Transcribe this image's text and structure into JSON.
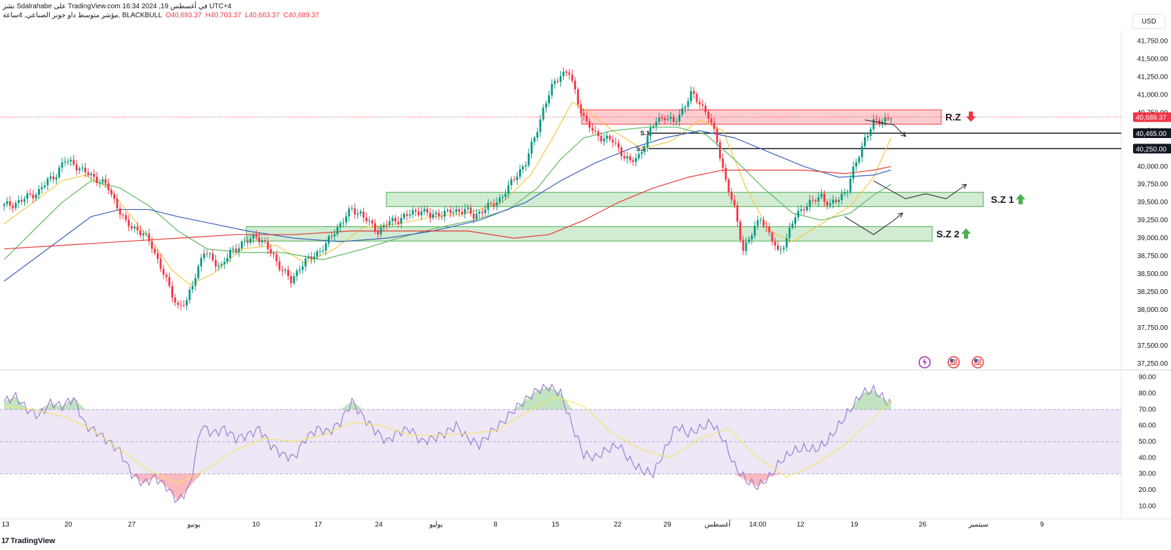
{
  "header": {
    "line1": "نشر Sdalrahabe على TradingView.com في أغسطس 19, 2024 16:34 UTC+4",
    "symbol": "مؤشر متوسط داو جونز الصناعي, 4ساعة, BLACKBULL",
    "open": "O40,693.37",
    "high": "H40,703.37",
    "low": "L40,663.37",
    "close": "C40,689.37"
  },
  "unit_label": "USD",
  "brand": {
    "mark": "17",
    "name": "TradingView"
  },
  "colors": {
    "candle_up": "#089981",
    "candle_down": "#f23645",
    "ma_yellow": "#f5c842",
    "ma_green": "#5cb85c",
    "ma_blue": "#3b5fc0",
    "ma_red": "#e53935",
    "rsi_line": "#9575cd",
    "rsi_band": "#ede7f6"
  },
  "icons": [
    "bolt-icon",
    "us-flag-icon",
    "us-flag-icon"
  ],
  "chart_data": [
    {
      "type": "candlestick",
      "ylim": [
        37200,
        41900
      ],
      "y_ticks": [
        "41,750.00",
        "41,500.00",
        "41,250.00",
        "41,000.00",
        "40,750.00",
        "40,500.00",
        "40,250.00",
        "40,000.00",
        "39,750.00",
        "39,500.00",
        "39,250.00",
        "39,000.00",
        "38,750.00",
        "38,500.00",
        "38,250.00",
        "38,000.00",
        "37,750.00",
        "37,500.00",
        "37,250.00"
      ],
      "y_tick_values": [
        41750,
        41500,
        41250,
        41000,
        40750,
        40500,
        40250,
        40000,
        39750,
        39500,
        39250,
        39000,
        38750,
        38500,
        38250,
        38000,
        37750,
        37500,
        37250
      ],
      "x_ticks": [
        "13",
        "20",
        "27",
        "يونيو",
        "10",
        "17",
        "24",
        "يوليو",
        "8",
        "15",
        "22",
        "29",
        "أغسطس",
        "14:00",
        "12",
        "19",
        "26",
        "سبتمبر",
        "9"
      ],
      "last_price": {
        "value": 40689.37,
        "label": "40,689.37"
      },
      "levels": [
        {
          "name": "S.1",
          "value": 40465,
          "label": "40,465.00"
        },
        {
          "name": "S.2",
          "value": 40250,
          "label": "40,250.00"
        }
      ],
      "zones": [
        {
          "label": "R.Z",
          "from": 40590,
          "to": 40790,
          "kind": "resistance"
        },
        {
          "label": "S.Z 1",
          "from": 39440,
          "to": 39640,
          "kind": "support"
        },
        {
          "label": "S.Z 2",
          "from": 38960,
          "to": 39160,
          "kind": "support"
        }
      ],
      "price_path": [
        [
          0,
          39450
        ],
        [
          3,
          39480
        ],
        [
          6,
          39520
        ],
        [
          9,
          39600
        ],
        [
          12,
          39650
        ],
        [
          15,
          39800
        ],
        [
          18,
          39900
        ],
        [
          21,
          40080
        ],
        [
          24,
          40050
        ],
        [
          27,
          39930
        ],
        [
          30,
          39880
        ],
        [
          33,
          39800
        ],
        [
          36,
          39700
        ],
        [
          39,
          39450
        ],
        [
          42,
          39200
        ],
        [
          45,
          39150
        ],
        [
          48,
          39050
        ],
        [
          51,
          38900
        ],
        [
          54,
          38600
        ],
        [
          57,
          38300
        ],
        [
          60,
          38050
        ],
        [
          63,
          38100
        ],
        [
          66,
          38500
        ],
        [
          69,
          38800
        ],
        [
          72,
          38700
        ],
        [
          75,
          38600
        ],
        [
          78,
          38800
        ],
        [
          81,
          38900
        ],
        [
          84,
          38950
        ],
        [
          87,
          39050
        ],
        [
          90,
          38900
        ],
        [
          93,
          38750
        ],
        [
          96,
          38550
        ],
        [
          99,
          38400
        ],
        [
          102,
          38600
        ],
        [
          105,
          38700
        ],
        [
          108,
          38800
        ],
        [
          111,
          38900
        ],
        [
          114,
          39100
        ],
        [
          117,
          39250
        ],
        [
          120,
          39400
        ],
        [
          123,
          39350
        ],
        [
          126,
          39200
        ],
        [
          129,
          39100
        ],
        [
          132,
          39200
        ],
        [
          135,
          39250
        ],
        [
          138,
          39300
        ],
        [
          141,
          39350
        ],
        [
          144,
          39400
        ],
        [
          147,
          39300
        ],
        [
          150,
          39350
        ],
        [
          153,
          39350
        ],
        [
          156,
          39380
        ],
        [
          159,
          39400
        ],
        [
          162,
          39300
        ],
        [
          165,
          39400
        ],
        [
          168,
          39450
        ],
        [
          171,
          39550
        ],
        [
          174,
          39700
        ],
        [
          177,
          39900
        ],
        [
          180,
          40050
        ],
        [
          183,
          40400
        ],
        [
          186,
          40800
        ],
        [
          189,
          41100
        ],
        [
          192,
          41300
        ],
        [
          195,
          41300
        ],
        [
          198,
          40900
        ],
        [
          201,
          40600
        ],
        [
          204,
          40450
        ],
        [
          207,
          40400
        ],
        [
          210,
          40350
        ],
        [
          213,
          40200
        ],
        [
          216,
          40050
        ],
        [
          219,
          40150
        ],
        [
          222,
          40400
        ],
        [
          225,
          40650
        ],
        [
          228,
          40700
        ],
        [
          231,
          40600
        ],
        [
          234,
          40800
        ],
        [
          237,
          41000
        ],
        [
          240,
          40900
        ],
        [
          243,
          40700
        ],
        [
          246,
          40350
        ],
        [
          249,
          39800
        ],
        [
          252,
          39400
        ],
        [
          255,
          38850
        ],
        [
          258,
          39050
        ],
        [
          261,
          39300
        ],
        [
          264,
          39050
        ],
        [
          267,
          38800
        ],
        [
          270,
          39000
        ],
        [
          273,
          39300
        ],
        [
          276,
          39450
        ],
        [
          279,
          39500
        ],
        [
          282,
          39600
        ],
        [
          285,
          39450
        ],
        [
          288,
          39550
        ],
        [
          291,
          39700
        ],
        [
          294,
          40050
        ],
        [
          297,
          40400
        ],
        [
          300,
          40600
        ],
        [
          303,
          40650
        ],
        [
          306,
          40690
        ]
      ],
      "moving_averages": {
        "fast_yellow": [
          [
            0,
            39200
          ],
          [
            10,
            39500
          ],
          [
            20,
            39800
          ],
          [
            28,
            39880
          ],
          [
            36,
            39700
          ],
          [
            44,
            39300
          ],
          [
            52,
            38900
          ],
          [
            58,
            38550
          ],
          [
            64,
            38350
          ],
          [
            72,
            38500
          ],
          [
            82,
            38850
          ],
          [
            94,
            38900
          ],
          [
            104,
            38650
          ],
          [
            114,
            38850
          ],
          [
            124,
            39150
          ],
          [
            136,
            39200
          ],
          [
            148,
            39300
          ],
          [
            160,
            39350
          ],
          [
            172,
            39500
          ],
          [
            182,
            39900
          ],
          [
            190,
            40450
          ],
          [
            196,
            40900
          ],
          [
            202,
            40750
          ],
          [
            210,
            40500
          ],
          [
            220,
            40250
          ],
          [
            230,
            40350
          ],
          [
            240,
            40650
          ],
          [
            248,
            40500
          ],
          [
            256,
            39700
          ],
          [
            264,
            39100
          ],
          [
            272,
            38950
          ],
          [
            282,
            39200
          ],
          [
            292,
            39450
          ],
          [
            300,
            39850
          ],
          [
            306,
            40400
          ]
        ],
        "mid_green": [
          [
            0,
            38700
          ],
          [
            10,
            39100
          ],
          [
            20,
            39500
          ],
          [
            30,
            39800
          ],
          [
            40,
            39700
          ],
          [
            50,
            39450
          ],
          [
            60,
            39100
          ],
          [
            70,
            38850
          ],
          [
            82,
            38800
          ],
          [
            96,
            38800
          ],
          [
            110,
            38700
          ],
          [
            124,
            38850
          ],
          [
            136,
            39000
          ],
          [
            150,
            39150
          ],
          [
            162,
            39250
          ],
          [
            174,
            39400
          ],
          [
            184,
            39700
          ],
          [
            192,
            40100
          ],
          [
            200,
            40400
          ],
          [
            210,
            40500
          ],
          [
            222,
            40550
          ],
          [
            232,
            40550
          ],
          [
            242,
            40450
          ],
          [
            252,
            40100
          ],
          [
            262,
            39700
          ],
          [
            272,
            39350
          ],
          [
            282,
            39250
          ],
          [
            292,
            39350
          ],
          [
            300,
            39600
          ],
          [
            306,
            39750
          ]
        ],
        "slow_blue": [
          [
            0,
            38400
          ],
          [
            10,
            38700
          ],
          [
            20,
            39000
          ],
          [
            30,
            39300
          ],
          [
            40,
            39400
          ],
          [
            50,
            39400
          ],
          [
            60,
            39300
          ],
          [
            72,
            39200
          ],
          [
            84,
            39100
          ],
          [
            100,
            39000
          ],
          [
            116,
            38950
          ],
          [
            132,
            39000
          ],
          [
            148,
            39100
          ],
          [
            164,
            39250
          ],
          [
            180,
            39500
          ],
          [
            192,
            39800
          ],
          [
            204,
            40050
          ],
          [
            216,
            40250
          ],
          [
            228,
            40400
          ],
          [
            240,
            40500
          ],
          [
            252,
            40400
          ],
          [
            264,
            40200
          ],
          [
            276,
            40000
          ],
          [
            288,
            39850
          ],
          [
            300,
            39880
          ],
          [
            306,
            39950
          ]
        ],
        "long_red": [
          [
            0,
            38850
          ],
          [
            20,
            38900
          ],
          [
            40,
            38950
          ],
          [
            60,
            39000
          ],
          [
            80,
            39050
          ],
          [
            100,
            39050
          ],
          [
            120,
            39100
          ],
          [
            140,
            39100
          ],
          [
            160,
            39100
          ],
          [
            176,
            39000
          ],
          [
            188,
            39050
          ],
          [
            200,
            39250
          ],
          [
            212,
            39500
          ],
          [
            224,
            39700
          ],
          [
            236,
            39850
          ],
          [
            248,
            39950
          ],
          [
            262,
            39950
          ],
          [
            276,
            39950
          ],
          [
            290,
            39900
          ],
          [
            300,
            39950
          ],
          [
            306,
            40000
          ]
        ]
      },
      "projections": [
        {
          "path": [
            [
              297,
              40650
            ],
            [
              307,
              40580
            ],
            [
              311,
              40420
            ]
          ]
        },
        {
          "path": [
            [
              300,
              39800
            ],
            [
              311,
              39550
            ],
            [
              318,
              39620
            ],
            [
              325,
              39550
            ],
            [
              332,
              39750
            ]
          ]
        },
        {
          "path": [
            [
              290,
              39300
            ],
            [
              300,
              39050
            ],
            [
              307,
              39250
            ],
            [
              310,
              39350
            ]
          ]
        }
      ]
    },
    {
      "type": "line",
      "title": "",
      "ylim": [
        5,
        92
      ],
      "y_ticks": [
        "90.00",
        "80.00",
        "70.00",
        "60.00",
        "50.00",
        "40.00",
        "30.00",
        "20.00",
        "10.00"
      ],
      "y_tick_values": [
        90,
        80,
        70,
        60,
        50,
        40,
        30,
        20,
        10
      ],
      "overbought": 70,
      "oversold": 30,
      "midline": 50,
      "series": [
        {
          "x": [
            0,
            4,
            8,
            12,
            16,
            20,
            24,
            28,
            32,
            36,
            40,
            44,
            48,
            52,
            56,
            60,
            64,
            68,
            72,
            76,
            80,
            84,
            88,
            92,
            96,
            100,
            104,
            108,
            112,
            116,
            120,
            124,
            128,
            132,
            136,
            140,
            144,
            148,
            152,
            156,
            160,
            164,
            168,
            172,
            176,
            180,
            184,
            188,
            192,
            196,
            200,
            204,
            208,
            212,
            216,
            220,
            224,
            228,
            232,
            236,
            240,
            244,
            248,
            252,
            256,
            260,
            264,
            268,
            272,
            276,
            280,
            284,
            288,
            292,
            296,
            300,
            304,
            306
          ],
          "y": [
            75,
            78,
            70,
            66,
            74,
            72,
            77,
            60,
            56,
            50,
            44,
            30,
            24,
            28,
            22,
            13,
            22,
            60,
            55,
            58,
            52,
            54,
            58,
            48,
            42,
            40,
            52,
            58,
            56,
            62,
            75,
            65,
            57,
            50,
            56,
            58,
            50,
            52,
            55,
            60,
            52,
            48,
            56,
            62,
            70,
            76,
            82,
            84,
            80,
            60,
            42,
            40,
            45,
            48,
            38,
            32,
            30,
            45,
            60,
            55,
            58,
            62,
            52,
            35,
            26,
            22,
            28,
            38,
            44,
            46,
            45,
            50,
            60,
            70,
            80,
            82,
            76,
            74
          ]
        }
      ],
      "signal": {
        "x": [
          0,
          10,
          20,
          30,
          40,
          50,
          60,
          70,
          80,
          90,
          100,
          110,
          120,
          130,
          140,
          150,
          160,
          170,
          180,
          190,
          200,
          210,
          220,
          230,
          240,
          250,
          260,
          270,
          280,
          290,
          300,
          306
        ],
        "y": [
          72,
          70,
          66,
          58,
          45,
          32,
          24,
          33,
          45,
          52,
          50,
          54,
          62,
          60,
          54,
          54,
          55,
          57,
          68,
          78,
          72,
          55,
          45,
          40,
          52,
          58,
          40,
          28,
          36,
          48,
          65,
          76
        ]
      }
    }
  ]
}
